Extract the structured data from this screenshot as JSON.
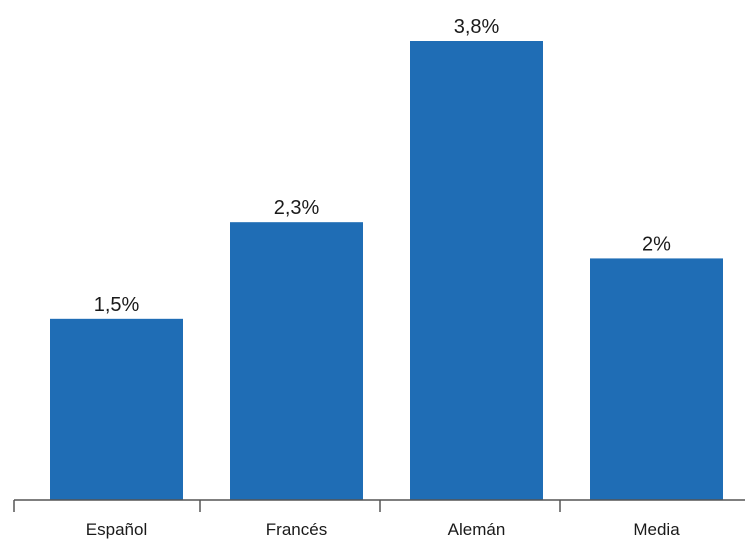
{
  "chart_data": {
    "type": "bar",
    "title": "",
    "xlabel": "",
    "ylabel": "",
    "categories": [
      "Español",
      "Francés",
      "Alemán",
      "Media"
    ],
    "values": [
      1.5,
      2.3,
      3.8,
      2
    ],
    "value_labels": [
      "1,5%",
      "2,3%",
      "3,8%",
      "2%"
    ],
    "ylim": [
      0,
      3.8
    ],
    "grid": false,
    "legend": "none",
    "bar_color": "#1f6db5"
  }
}
